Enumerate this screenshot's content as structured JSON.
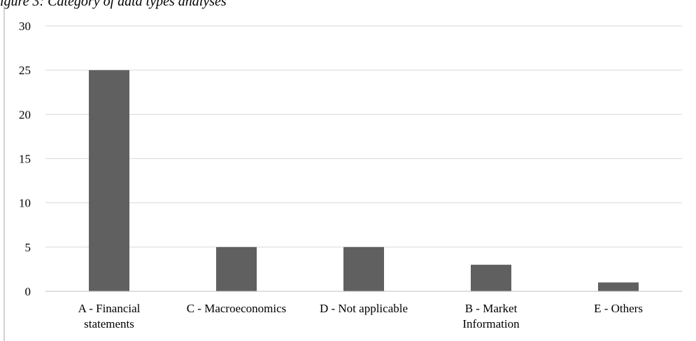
{
  "figure": {
    "caption": "igure 3: Category of data types analyses"
  },
  "chart_data": {
    "type": "bar",
    "categories": [
      [
        "A - Financial",
        "statements"
      ],
      [
        "C - Macroeconomics"
      ],
      [
        "D - Not applicable"
      ],
      [
        "B - Market",
        "Information"
      ],
      [
        "E - Others"
      ]
    ],
    "values": [
      25,
      5,
      5,
      3,
      1
    ],
    "yticks": [
      "0",
      "5",
      "10",
      "15",
      "20",
      "25",
      "30"
    ],
    "ylim": [
      0,
      30
    ],
    "title": "",
    "xlabel": "",
    "ylabel": "",
    "grid": true,
    "legend": "none",
    "bar_color": "#606060",
    "grid_color": "#d9d9d9",
    "axis_color": "#bfbfbf"
  }
}
